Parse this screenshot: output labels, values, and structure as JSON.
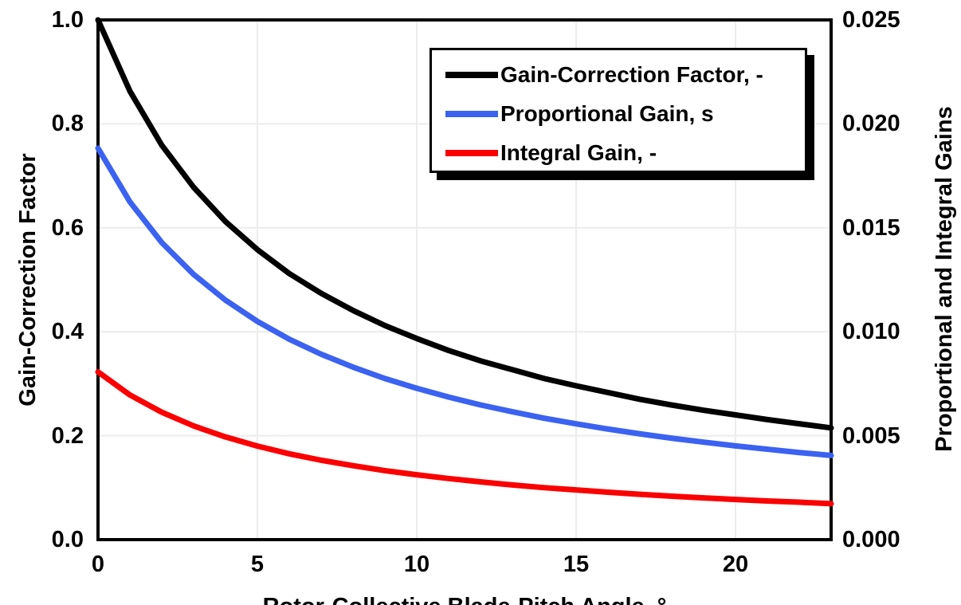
{
  "chart_data": {
    "type": "line",
    "title": "",
    "grid": true,
    "legend_position": "top-right-inside",
    "x": [
      0,
      1,
      2,
      3,
      4,
      5,
      6,
      7,
      8,
      9,
      10,
      11,
      12,
      13,
      14,
      15,
      16,
      17,
      18,
      19,
      20,
      21,
      22,
      23
    ],
    "series": [
      {
        "name": "Gain-Correction Factor, -",
        "color": "#000000",
        "axis": "left",
        "values": [
          1.0,
          0.863,
          0.759,
          0.678,
          0.612,
          0.558,
          0.512,
          0.474,
          0.441,
          0.412,
          0.387,
          0.364,
          0.344,
          0.327,
          0.31,
          0.296,
          0.283,
          0.27,
          0.259,
          0.249,
          0.24,
          0.231,
          0.223,
          0.215
        ]
      },
      {
        "name": "Proportional Gain, s",
        "color": "#3B62F0",
        "axis": "right",
        "values": [
          0.01883,
          0.01625,
          0.01429,
          0.01276,
          0.01152,
          0.0105,
          0.00964,
          0.00892,
          0.0083,
          0.00775,
          0.00728,
          0.00686,
          0.00648,
          0.00615,
          0.00584,
          0.00557,
          0.00532,
          0.00509,
          0.00488,
          0.00469,
          0.00451,
          0.00435,
          0.00419,
          0.00405
        ]
      },
      {
        "name": "Integral Gain, -",
        "color": "#FA0000",
        "axis": "right",
        "values": [
          0.00807,
          0.00696,
          0.00613,
          0.00547,
          0.00494,
          0.0045,
          0.00413,
          0.00382,
          0.00356,
          0.00332,
          0.00312,
          0.00294,
          0.00278,
          0.00263,
          0.0025,
          0.00239,
          0.00228,
          0.00218,
          0.00209,
          0.00201,
          0.00193,
          0.00186,
          0.0018,
          0.00173
        ]
      }
    ],
    "x_axis": {
      "label": "Rotor-Collective Blade-Pitch Angle, °",
      "ticks": [
        "0",
        "5",
        "10",
        "15",
        "20"
      ],
      "range": [
        0,
        23
      ]
    },
    "y_left": {
      "label": "Gain-Correction Factor",
      "ticks": [
        "1.0",
        "0.8",
        "0.6",
        "0.4",
        "0.2",
        "0.0"
      ],
      "range": [
        0,
        1
      ]
    },
    "y_right": {
      "label": "Proportional and Integral Gains",
      "ticks": [
        "0.025",
        "0.020",
        "0.015",
        "0.010",
        "0.005",
        "0.000"
      ],
      "range": [
        0,
        0.025
      ]
    },
    "colors": {
      "frame": "#000000",
      "gridline": "#ececec",
      "background": "#ffffff"
    }
  }
}
